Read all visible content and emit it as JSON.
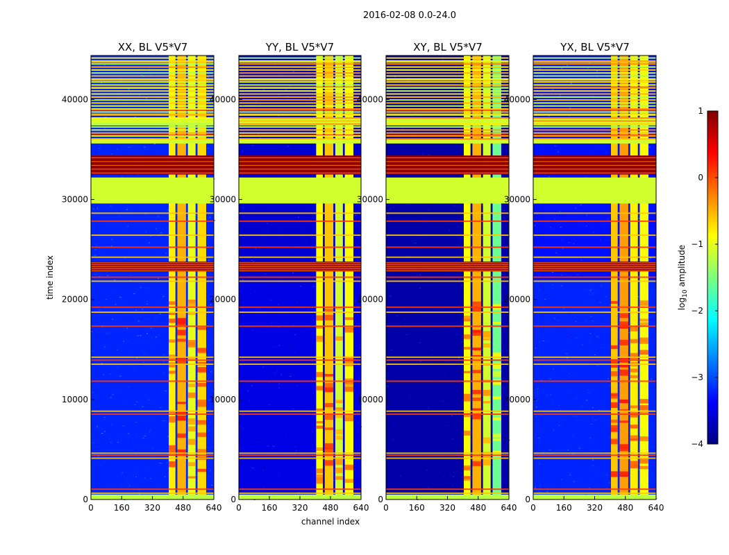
{
  "figure": {
    "suptitle": "2016-02-08 0.0-24.0"
  },
  "colors": {
    "jet": [
      "#00007f",
      "#0000ff",
      "#007fff",
      "#00ffff",
      "#7fff7f",
      "#ffff00",
      "#ff7f00",
      "#ff0000",
      "#7f0000"
    ]
  },
  "chart_data": [
    {
      "type": "heatmap",
      "title": "XX, BL V5*V7",
      "xlabel": "",
      "ylabel": "time index",
      "xlim": [
        0,
        640
      ],
      "ylim": [
        0,
        44400
      ],
      "xticks": [
        "0",
        "160",
        "320",
        "480",
        "640"
      ],
      "yticks": [
        "0",
        "10000",
        "20000",
        "30000",
        "40000"
      ],
      "color_value_unit": "log10 amplitude",
      "background_level": -3.2,
      "low_region_level": -3.2,
      "band_levels": [
        -0.8,
        -0.5,
        -1.0,
        -0.7
      ],
      "band_channels": [
        [
          405,
          440
        ],
        [
          450,
          495
        ],
        [
          505,
          545
        ],
        [
          555,
          600
        ]
      ]
    },
    {
      "type": "heatmap",
      "title": "YY, BL V5*V7",
      "xlabel": "channel index",
      "ylabel": "",
      "xlim": [
        0,
        640
      ],
      "ylim": [
        0,
        44400
      ],
      "xticks": [
        "0",
        "160",
        "320",
        "480",
        "640"
      ],
      "yticks": [
        "0",
        "10000",
        "20000",
        "30000",
        "40000"
      ],
      "color_value_unit": "log10 amplitude",
      "background_level": -3.6,
      "low_region_level": -3.5,
      "band_levels": [
        -0.9,
        -0.6,
        -1.1,
        -0.9
      ],
      "band_channels": [
        [
          405,
          440
        ],
        [
          450,
          495
        ],
        [
          505,
          545
        ],
        [
          555,
          600
        ]
      ]
    },
    {
      "type": "heatmap",
      "title": "XY, BL V5*V7",
      "xlabel": "",
      "ylabel": "",
      "xlim": [
        0,
        640
      ],
      "ylim": [
        0,
        44400
      ],
      "xticks": [
        "0",
        "160",
        "320",
        "480",
        "640"
      ],
      "yticks": [
        "0",
        "10000",
        "20000",
        "30000",
        "40000"
      ],
      "color_value_unit": "log10 amplitude",
      "background_level": -3.8,
      "low_region_level": -3.8,
      "band_levels": [
        -0.9,
        -0.5,
        -1.1,
        -1.6
      ],
      "band_channels": [
        [
          405,
          440
        ],
        [
          450,
          495
        ],
        [
          505,
          545
        ],
        [
          555,
          600
        ]
      ]
    },
    {
      "type": "heatmap",
      "title": "YX, BL V5*V7",
      "xlabel": "",
      "ylabel": "",
      "xlim": [
        0,
        640
      ],
      "ylim": [
        0,
        44400
      ],
      "xticks": [
        "0",
        "160",
        "320",
        "480",
        "640"
      ],
      "yticks": [
        "0",
        "10000",
        "20000",
        "30000",
        "40000"
      ],
      "color_value_unit": "log10 amplitude",
      "background_level": -3.3,
      "low_region_level": -3.2,
      "band_levels": [
        -0.6,
        -0.4,
        -0.8,
        -0.9
      ],
      "band_channels": [
        [
          405,
          440
        ],
        [
          450,
          495
        ],
        [
          505,
          545
        ],
        [
          555,
          600
        ]
      ]
    }
  ],
  "colorbar": {
    "label": "log",
    "label_sub": "10",
    "label_suffix": " amplitude",
    "vmin": -4,
    "vmax": 1,
    "ticks": [
      "1",
      "0",
      "−1",
      "−2",
      "−3",
      "−4"
    ]
  },
  "time_structure": {
    "flagged_green_ranges": [
      [
        29600,
        32200
      ],
      [
        35600,
        36000
      ],
      [
        37400,
        38200
      ]
    ],
    "dark_red_ranges": [
      [
        32500,
        34400
      ],
      [
        22800,
        23800
      ]
    ],
    "rfi_lines": [
      700,
      1100,
      4200,
      4500,
      4700,
      8600,
      8900,
      11900,
      13600,
      14000,
      14300,
      17400,
      18800,
      19300,
      21900,
      22300,
      24300,
      25300,
      26500,
      27900,
      28700,
      36500,
      38600,
      39000,
      40300,
      41300,
      42000,
      43300,
      43800
    ]
  }
}
